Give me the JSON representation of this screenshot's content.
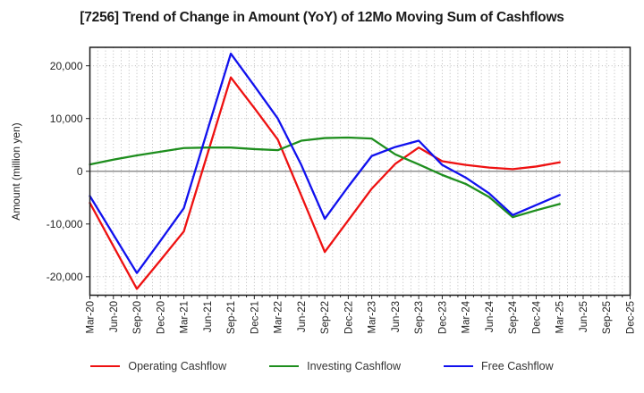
{
  "window": {
    "title": "[7256]  Trend of Change in Amount (YoY) of 12Mo Moving Sum of Cashflows"
  },
  "chart_data": {
    "type": "line",
    "title": "[7256]  Trend of Change in Amount (YoY) of 12Mo Moving Sum of Cashflows",
    "xlabel": "",
    "ylabel": "Amount (million yen)",
    "x_labels": [
      "Mar-20",
      "Jun-20",
      "Sep-20",
      "Dec-20",
      "Mar-21",
      "Jun-21",
      "Sep-21",
      "Dec-21",
      "Mar-22",
      "Jun-22",
      "Sep-22",
      "Dec-22",
      "Mar-23",
      "Jun-23",
      "Sep-23",
      "Dec-23",
      "Mar-24",
      "Jun-24",
      "Sep-24",
      "Dec-24",
      "Mar-25",
      "Jun-25",
      "Sep-25",
      "Dec-25"
    ],
    "yticks": [
      20000,
      10000,
      0,
      -10000,
      -20000
    ],
    "ylim": [
      -23500,
      23500
    ],
    "grid": {
      "vertical": "dotted-monthly",
      "horizontal": "dotted-major",
      "zero_line": "solid-gray",
      "legend_position": "bottom"
    },
    "axis_color": "#222222",
    "grid_color": "#b3b3b3",
    "zero_line_color": "#7d7d7d",
    "series": [
      {
        "name": "Operating Cashflow",
        "color": "#ee1111",
        "values": [
          -6000,
          -14200,
          -22300,
          -16900,
          -11400,
          3200,
          17800,
          12000,
          6000,
          -4600,
          -15300,
          -9300,
          -3300,
          1400,
          4500,
          1900,
          1200,
          700,
          400,
          900,
          1700
        ]
      },
      {
        "name": "Investing Cashflow",
        "color": "#1e8e1e",
        "values": [
          1300,
          2200,
          3000,
          3700,
          4400,
          4500,
          4500,
          4200,
          4000,
          5800,
          6300,
          6400,
          6200,
          3200,
          1300,
          -700,
          -2400,
          -4900,
          -8700,
          -7400,
          -6200
        ]
      },
      {
        "name": "Free Cashflow",
        "color": "#1111ee",
        "values": [
          -4700,
          -12000,
          -19300,
          -13200,
          -7000,
          7700,
          22300,
          16200,
          10000,
          1200,
          -9000,
          -2900,
          2900,
          4600,
          5800,
          1200,
          -1200,
          -4200,
          -8300,
          -6400,
          -4500
        ]
      }
    ]
  }
}
